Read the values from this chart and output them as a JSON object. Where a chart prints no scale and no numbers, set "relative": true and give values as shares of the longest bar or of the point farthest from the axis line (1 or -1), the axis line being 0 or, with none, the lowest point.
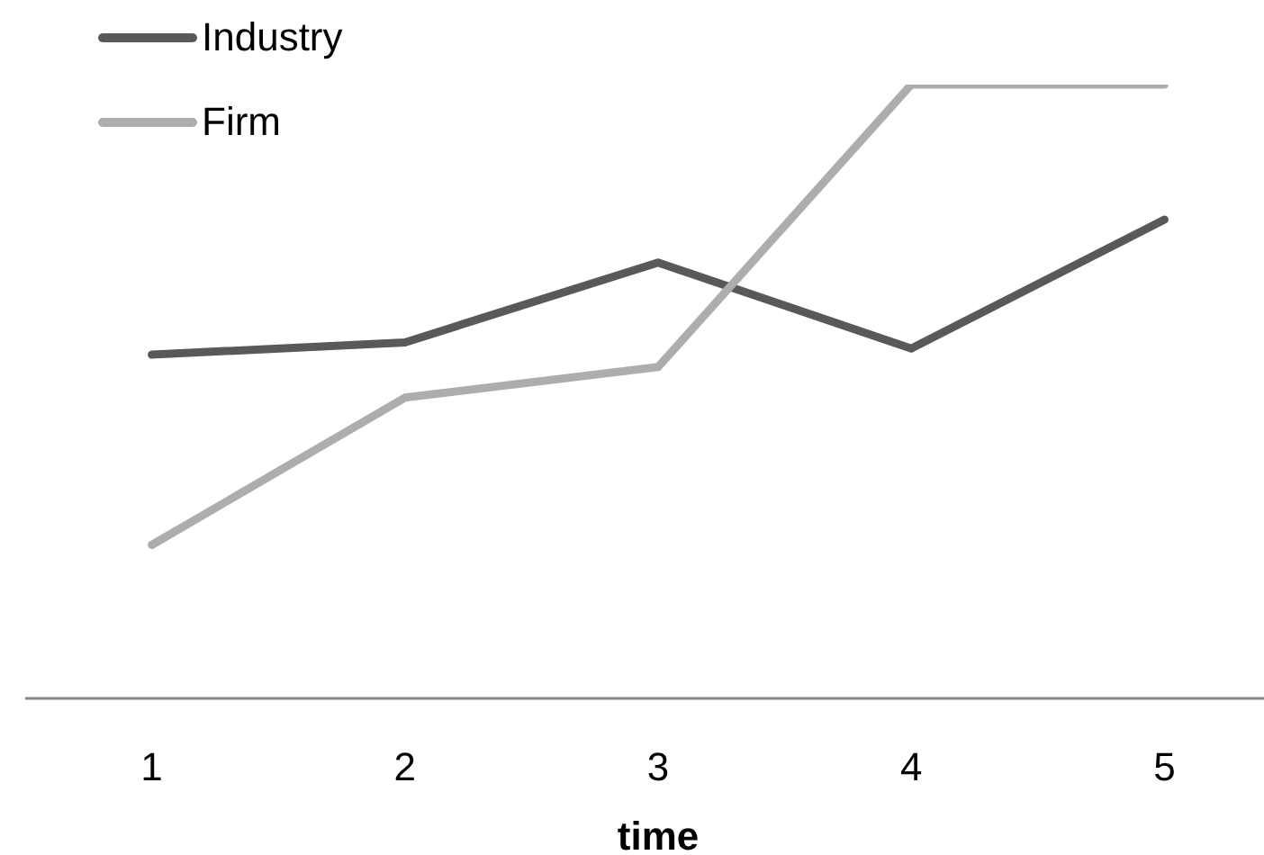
{
  "chart_data": {
    "type": "line",
    "xlabel": "time",
    "categories": [
      "1",
      "2",
      "3",
      "4",
      "5"
    ],
    "series": [
      {
        "name": "Industry",
        "color": "#595959",
        "values": [
          0.56,
          0.58,
          0.71,
          0.57,
          0.78
        ]
      },
      {
        "name": "Firm",
        "color": "#adadad",
        "values": [
          0.25,
          0.49,
          0.54,
          1,
          1
        ]
      }
    ],
    "relative": true,
    "legend": "top left",
    "marker": "none",
    "line_style": "solid"
  }
}
